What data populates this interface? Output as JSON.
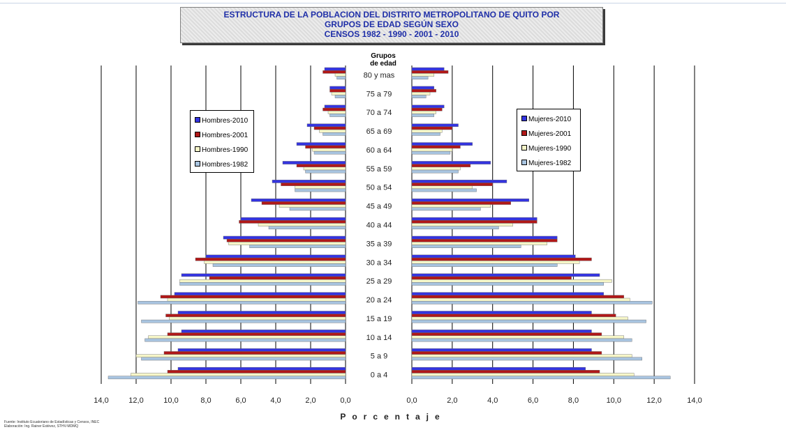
{
  "title": {
    "line1": "ESTRUCTURA DE LA POBLACION DEL DISTRITO METROPOLITANO DE QUITO POR",
    "line2": "GRUPOS DE EDAD SEGÚN SEXO",
    "line3": "CENSOS 1982 - 1990 - 2001 - 2010"
  },
  "colors": {
    "2010": "#3434e0",
    "2001": "#b01818",
    "1990": "#f6f6c8",
    "1982": "#a8c4e0",
    "bar_stroke": "#666666",
    "gridline": "#000000"
  },
  "footer": {
    "line1": "Fuente: Instituto Ecuatoriano de Estadísticas y Censos, INEC",
    "line2": "Elaboración: Ing. Rainer Estévez, STHV-MDMQ"
  },
  "chart_data": {
    "type": "bar",
    "orientation": "horizontal-population-pyramid",
    "title": "ESTRUCTURA DE LA POBLACION DEL DISTRITO METROPOLITANO DE QUITO POR GRUPOS DE EDAD SEGÚN SEXO CENSOS 1982 - 1990 - 2001 - 2010",
    "category_axis_title": "Grupos de edad",
    "xlabel": "Porcentaje",
    "xlim": [
      0,
      14
    ],
    "x_ticks": [
      "0,0",
      "2,0",
      "4,0",
      "6,0",
      "8,0",
      "10,0",
      "12,0",
      "14,0"
    ],
    "x_ticks_left": [
      "14,0",
      "12,0",
      "10,0",
      "8,0",
      "6,0",
      "4,0",
      "2,0",
      "0,0"
    ],
    "grid": true,
    "categories": [
      "80 y mas",
      "75 a 79",
      "70 a 74",
      "65 a 69",
      "60 a 64",
      "55 a 59",
      "50 a 54",
      "45 a 49",
      "40 a 44",
      "35 a 39",
      "30 a 34",
      "25 a 29",
      "20 a 24",
      "15 a 19",
      "10 a 14",
      "5 a 9",
      "0 a 4"
    ],
    "hombres": {
      "legend_placement": "left",
      "series": [
        {
          "name": "Hombres-2010",
          "color_key": "2010",
          "values": [
            1.2,
            0.9,
            1.2,
            2.2,
            2.8,
            3.6,
            4.2,
            5.4,
            6.0,
            7.0,
            8.0,
            9.4,
            9.8,
            9.6,
            9.4,
            9.6,
            9.6
          ]
        },
        {
          "name": "Hombres-2001",
          "color_key": "2001",
          "values": [
            1.3,
            0.9,
            1.3,
            1.8,
            2.3,
            2.8,
            3.7,
            4.8,
            6.1,
            6.8,
            8.6,
            7.8,
            10.6,
            10.3,
            10.2,
            10.4,
            10.2
          ]
        },
        {
          "name": "Hombres-1990",
          "color_key": "1990",
          "values": [
            0.6,
            0.8,
            1.0,
            1.5,
            1.9,
            2.4,
            2.9,
            3.8,
            5.0,
            6.7,
            8.1,
            9.5,
            10.2,
            10.1,
            11.3,
            12.0,
            12.3
          ]
        },
        {
          "name": "Hombres-1982",
          "color_key": "1982",
          "values": [
            0.5,
            0.6,
            0.9,
            1.3,
            1.8,
            2.3,
            2.9,
            3.2,
            4.4,
            5.5,
            7.6,
            9.5,
            11.9,
            11.7,
            11.5,
            11.7,
            13.6
          ]
        }
      ]
    },
    "mujeres": {
      "legend_placement": "right",
      "series": [
        {
          "name": "Mujeres-2010",
          "color_key": "2010",
          "values": [
            1.6,
            1.1,
            1.6,
            2.3,
            3.0,
            3.9,
            4.7,
            5.8,
            6.2,
            7.2,
            8.1,
            9.3,
            9.5,
            8.9,
            8.9,
            8.9,
            8.6
          ]
        },
        {
          "name": "Mujeres-2001",
          "color_key": "2001",
          "values": [
            1.8,
            1.2,
            1.5,
            2.0,
            2.4,
            2.9,
            4.0,
            4.9,
            6.2,
            7.2,
            8.9,
            7.9,
            10.5,
            10.1,
            9.4,
            9.4,
            9.3
          ]
        },
        {
          "name": "Mujeres-1990",
          "color_key": "1990",
          "values": [
            1.1,
            0.9,
            1.2,
            1.5,
            2.0,
            2.4,
            3.0,
            3.9,
            5.0,
            6.7,
            8.3,
            9.9,
            10.8,
            10.7,
            10.5,
            10.9,
            11.0
          ]
        },
        {
          "name": "Mujeres-1982",
          "color_key": "1982",
          "values": [
            0.8,
            0.7,
            1.1,
            1.4,
            1.9,
            2.3,
            3.2,
            3.4,
            4.3,
            5.4,
            7.2,
            9.5,
            11.9,
            11.6,
            10.9,
            11.4,
            12.8
          ]
        }
      ]
    }
  }
}
